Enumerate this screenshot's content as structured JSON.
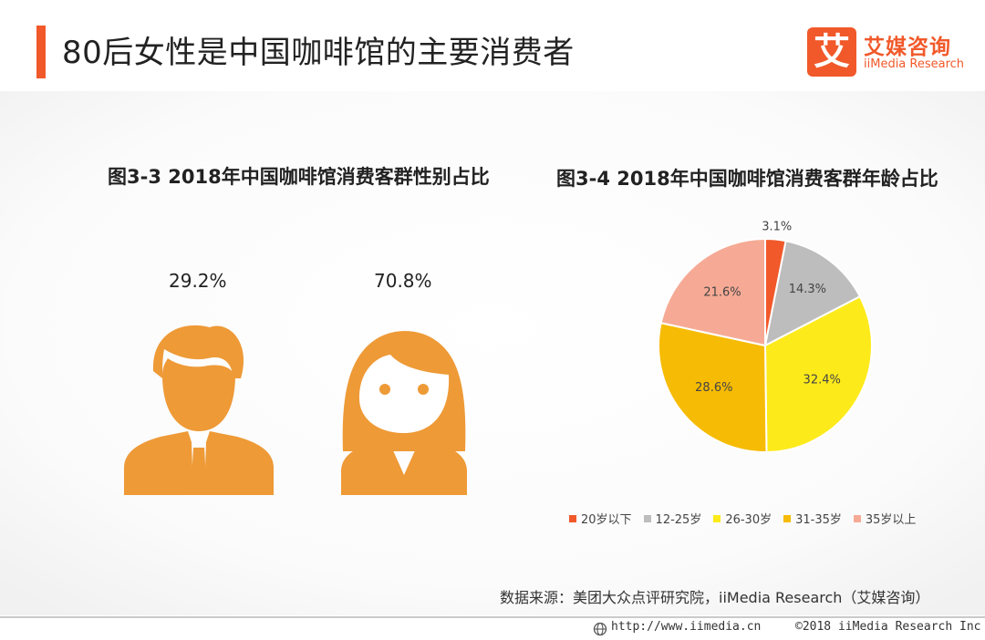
{
  "header": {
    "title": "80后女性是中国咖啡馆的主要消费者",
    "logo_mark": "艾",
    "logo_cn": "艾媒咨询",
    "logo_en": "iiMedia Research",
    "accent_color": "#f1592a"
  },
  "figure_3_3": {
    "title": "图3-3 2018年中国咖啡馆消费客群性别占比",
    "male_pct": "29.2%",
    "female_pct": "70.8%",
    "icon_color": "#ee9a37",
    "male_icon": "male-person-icon",
    "female_icon": "female-person-icon"
  },
  "chart_data": {
    "type": "pie",
    "title": "图3-4 2018年中国咖啡馆消费客群年龄占比",
    "categories": [
      "20岁以下",
      "12-25岁",
      "26-30岁",
      "31-35岁",
      "35岁以上"
    ],
    "values": [
      3.1,
      14.3,
      32.4,
      28.6,
      21.6
    ],
    "labels": [
      "3.1%",
      "14.3%",
      "32.4%",
      "28.6%",
      "21.6%"
    ],
    "colors": [
      "#f1592a",
      "#bdbdbd",
      "#fdea1b",
      "#f6bb04",
      "#f6aa95"
    ],
    "legend_placement": "bottom"
  },
  "footer": {
    "source": "数据来源：美团大众点评研究院，iiMedia Research（艾媒咨询）",
    "url": "http://www.iimedia.cn",
    "copyright": "©2018  iiMedia Research Inc",
    "globe_icon": "globe-icon"
  }
}
